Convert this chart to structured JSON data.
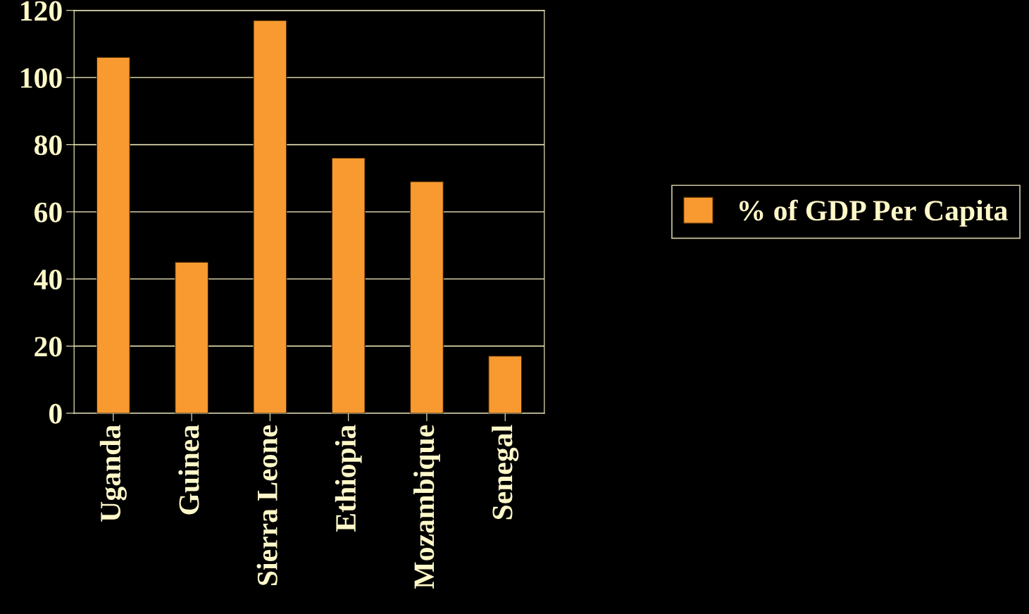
{
  "chart_data": {
    "type": "bar",
    "categories": [
      "Uganda",
      "Guinea",
      "Sierra Leone",
      "Ethiopia",
      "Mozambique",
      "Senegal"
    ],
    "series": [
      {
        "name": "% of GDP Per Capita",
        "color": "#f99a30",
        "values": [
          106,
          45,
          117,
          76,
          69,
          17
        ]
      }
    ],
    "ylim": [
      0,
      120
    ],
    "yticks": [
      0,
      20,
      40,
      60,
      80,
      100,
      120
    ],
    "grid": "y",
    "legend": "right"
  }
}
